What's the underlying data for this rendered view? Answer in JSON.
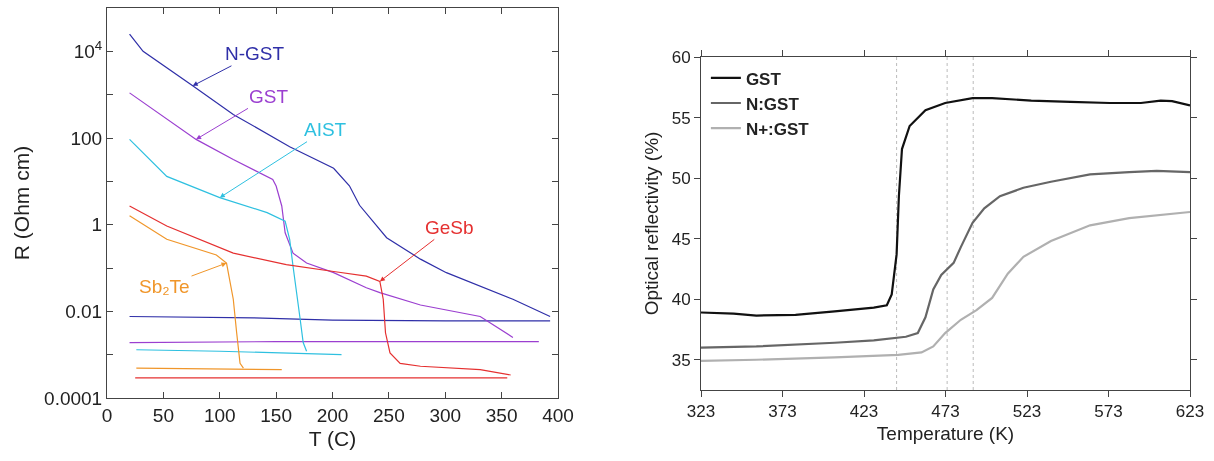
{
  "chart_data": [
    {
      "type": "line",
      "xlabel": "T (C)",
      "ylabel": "R (Ohm cm)",
      "log": true,
      "legend": false,
      "grid": false,
      "xlim": [
        0,
        400
      ],
      "xticks": [
        0,
        50,
        100,
        150,
        200,
        250,
        300,
        350,
        400
      ],
      "ylim": [
        0.0001,
        100000
      ],
      "yticks": [
        0.0001,
        {
          "value": 0.001,
          "label": null
        },
        0.01,
        {
          "value": 0.1,
          "label": null
        },
        1,
        {
          "value": 10,
          "label": null
        },
        100,
        {
          "value": 1000,
          "label": null
        },
        {
          "value": 10000,
          "label": "10$^{4}$"
        },
        {
          "value": 100000,
          "label": null
        }
      ],
      "series": [
        {
          "name": "N-GST",
          "color": "#2f2fa8",
          "x": [
            20,
            32,
            76,
            112,
            162,
            201,
            215,
            224,
            248,
            278,
            301,
            360,
            393
          ],
          "values": [
            25000,
            10000,
            1600,
            350,
            63,
            20,
            7.9,
            2.8,
            0.5,
            0.16,
            0.078,
            0.019,
            0.0076
          ]
        },
        {
          "color": "#2f2fa8",
          "x": [
            20,
            130,
            200,
            300,
            393
          ],
          "values": [
            0.0076,
            0.0071,
            0.0063,
            0.006,
            0.006
          ]
        },
        {
          "name": "GST",
          "color": "#9b3fd0",
          "x": [
            20,
            79,
            112,
            147,
            150,
            155,
            158,
            165,
            177,
            201,
            230,
            242,
            278,
            331,
            360
          ],
          "values": [
            1100,
            93,
            32,
            11,
            7.8,
            2.7,
            0.65,
            0.22,
            0.13,
            0.078,
            0.035,
            0.027,
            0.014,
            0.0076,
            0.0025
          ]
        },
        {
          "color": "#9b3fd0",
          "x": [
            20,
            150,
            383
          ],
          "values": [
            0.0019,
            0.002,
            0.002
          ]
        },
        {
          "name": "AIST",
          "color": "#2ec0e0",
          "x": [
            20,
            53,
            100,
            142,
            158,
            162,
            165,
            171,
            174,
            177
          ],
          "values": [
            93,
            13,
            4.2,
            1.9,
            1.2,
            0.46,
            0.11,
            0.0076,
            0.0019,
            0.0012
          ]
        },
        {
          "color": "#2ec0e0",
          "x": [
            26,
            100,
            208
          ],
          "values": [
            0.0013,
            0.0012,
            0.001
          ]
        },
        {
          "name": "GeSb",
          "color": "#e53030",
          "x": [
            20,
            53,
            112,
            159,
            201,
            230,
            242,
            245,
            247,
            251,
            260,
            278,
            331,
            358
          ],
          "values": [
            2.7,
            0.93,
            0.22,
            0.12,
            0.083,
            0.065,
            0.049,
            0.019,
            0.0032,
            0.0011,
            0.00063,
            0.00054,
            0.00045,
            0.00034
          ]
        },
        {
          "color": "#e53030",
          "x": [
            25,
            200,
            355
          ],
          "values": [
            0.00029,
            0.00029,
            0.00029
          ]
        },
        {
          "name": "Sb₂Te",
          "color": "#f0962a",
          "x": [
            20,
            53,
            97,
            106,
            112,
            115,
            118,
            121
          ],
          "values": [
            1.6,
            0.46,
            0.2,
            0.13,
            0.019,
            0.0032,
            0.00063,
            0.00049
          ]
        },
        {
          "color": "#f0962a",
          "x": [
            26,
            155
          ],
          "values": [
            0.00049,
            0.00045
          ]
        }
      ]
    },
    {
      "type": "line",
      "xlabel": "Temperature (K)",
      "ylabel": "Optical reflectivity (%)",
      "legend": "top left",
      "grid": false,
      "xlim": [
        323,
        623
      ],
      "xticks": [
        323,
        373,
        423,
        473,
        523,
        573,
        623
      ],
      "ylim": [
        32.5,
        60
      ],
      "yticks": [
        35,
        40,
        45,
        50,
        55,
        60
      ],
      "ref_lines": [
        {
          "axis": "x",
          "value": 443,
          "color": "#bbbbbb",
          "line_style": "dotted"
        },
        {
          "axis": "x",
          "value": 474,
          "color": "#bbbbbb",
          "line_style": "dotted"
        },
        {
          "axis": "x",
          "value": 490,
          "color": "#bbbbbb",
          "line_style": "dotted"
        }
      ],
      "series": [
        {
          "name": "GST",
          "color": "#111111",
          "x": [
            323,
            343,
            357,
            381,
            405,
            429,
            437,
            440,
            443,
            444.4,
            446.3,
            451,
            460.7,
            472.8,
            489.6,
            501.6,
            525.6,
            549.7,
            573.7,
            592.9,
            605,
            612,
            623
          ],
          "values": [
            38.9,
            38.8,
            38.65,
            38.7,
            39.0,
            39.3,
            39.5,
            40.4,
            43.7,
            48.5,
            52.4,
            54.3,
            55.6,
            56.2,
            56.6,
            56.6,
            56.4,
            56.3,
            56.2,
            56.2,
            56.4,
            56.35,
            56.0
          ]
        },
        {
          "name": "N:GST",
          "color": "#666666",
          "x": [
            323,
            357,
            405,
            429,
            448.7,
            456,
            460.7,
            465.5,
            470.4,
            478,
            482.4,
            489.6,
            496.8,
            506.4,
            520.8,
            537.7,
            561.7,
            585.7,
            602.6,
            623
          ],
          "values": [
            36.0,
            36.1,
            36.4,
            36.6,
            36.9,
            37.2,
            38.5,
            40.8,
            42.0,
            43.0,
            44.3,
            46.3,
            47.5,
            48.5,
            49.2,
            49.7,
            50.3,
            50.5,
            50.6,
            50.5
          ]
        },
        {
          "name": "N+:GST",
          "color": "#b0b0b0",
          "x": [
            323,
            357,
            405,
            444,
            458.3,
            465.5,
            472.8,
            482.4,
            492,
            501.6,
            511.2,
            520.8,
            537.7,
            561.7,
            585.7,
            623
          ],
          "values": [
            34.9,
            35.0,
            35.2,
            35.4,
            35.6,
            36.1,
            37.2,
            38.3,
            39.1,
            40.1,
            42.1,
            43.5,
            44.8,
            46.1,
            46.7,
            47.2
          ]
        }
      ]
    }
  ]
}
